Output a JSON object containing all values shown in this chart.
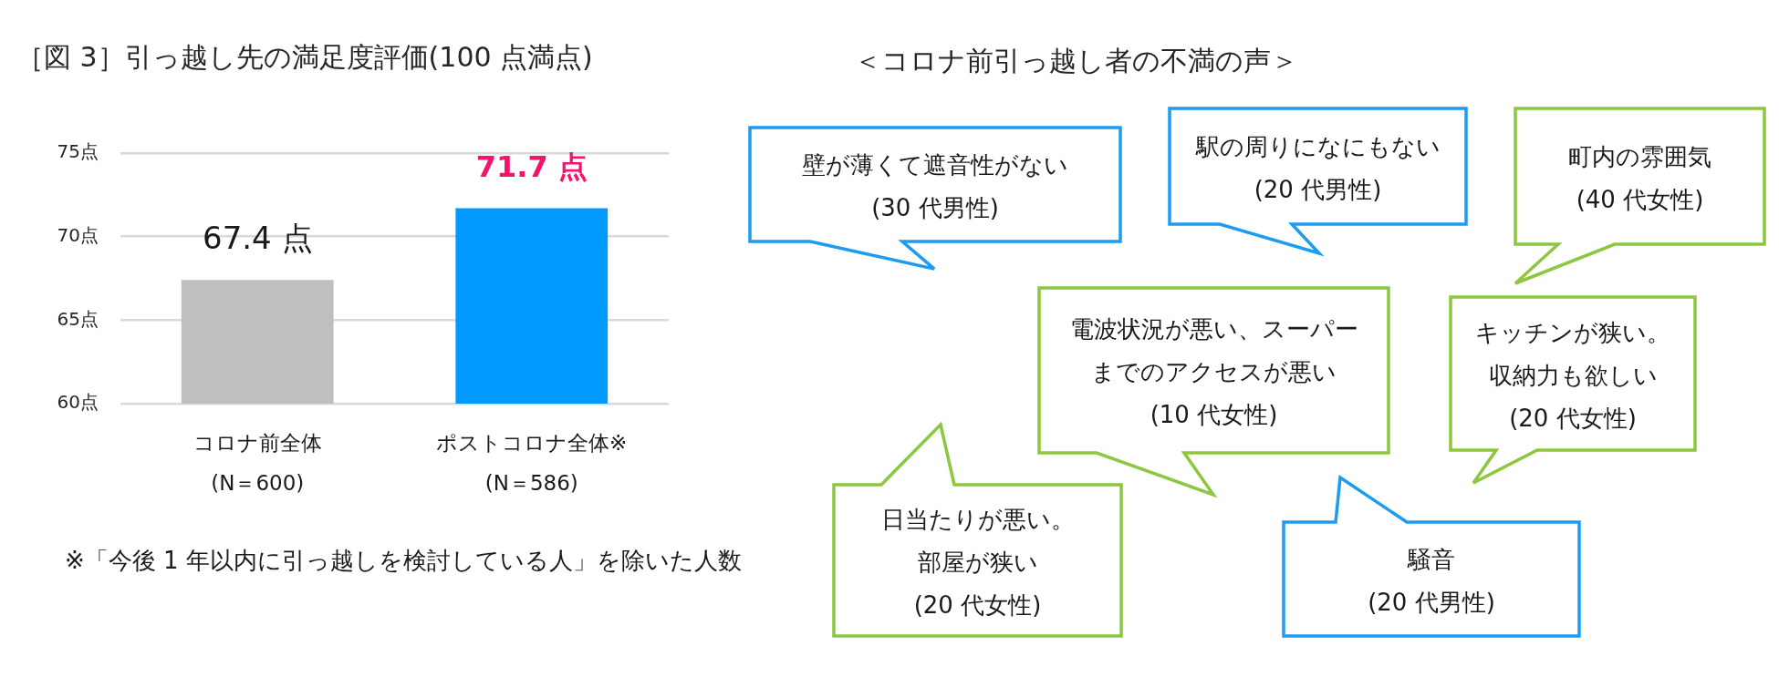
{
  "chart_data": [
    {
      "type": "bar",
      "title": "［図 3］引っ越し先の満足度評価(100 点満点)",
      "categories": [
        "コロナ前全体\n(N＝600)",
        "ポストコロナ全体※\n(N＝586)"
      ],
      "values": [
        67.4,
        71.7
      ],
      "colors": [
        "#bfbfbf",
        "#0099ff"
      ],
      "value_labels": [
        "67.4 点",
        "71.7 点"
      ],
      "ylim": [
        60,
        75
      ],
      "yticks": [
        {
          "value": 60,
          "label": "60点"
        },
        {
          "value": 65,
          "label": "65点"
        },
        {
          "value": 70,
          "label": "70点"
        },
        {
          "value": 75,
          "label": "75点"
        }
      ],
      "grid": "y",
      "annotations": [
        "※「今後 1 年以内に引っ越しを検討している人」を除いた人数"
      ]
    },
    {
      "type": "other",
      "title": "＜コロナ前引っ越し者の不満の声＞",
      "annotations": [
        "壁が薄くて遮音性がない\n(30 代男性)",
        "駅の周りになにもない\n(20 代男性)",
        "町内の雰囲気\n(40 代女性)",
        "電波状況が悪い、スーパーまでのアクセスが悪い\n(10 代女性)",
        "キッチンが狭い。収納力も欲しい\n(20 代女性)",
        "日当たりが悪い。部屋が狭い\n(20 代女性)",
        "騒音\n(20 代男性)"
      ],
      "colors": [
        "#1c9cf0",
        "#1c9cf0",
        "#8dc63f",
        "#8dc63f",
        "#8dc63f",
        "#8dc63f",
        "#1c9cf0"
      ]
    }
  ]
}
